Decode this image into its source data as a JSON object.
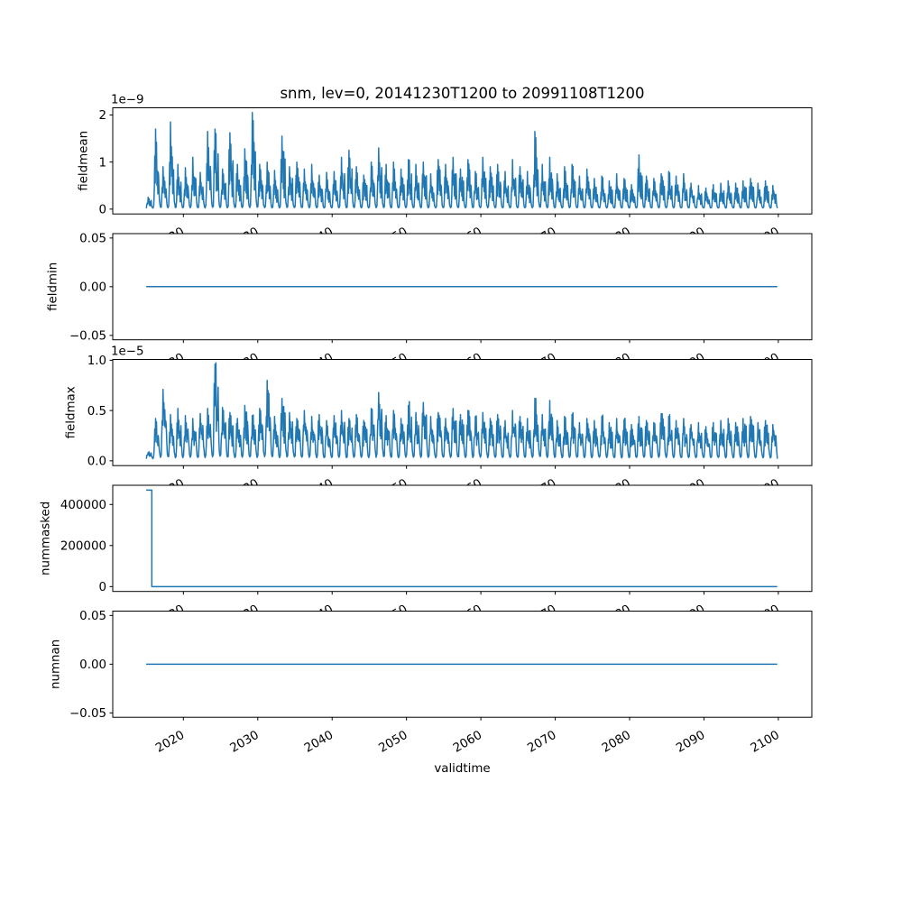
{
  "chart_data": {
    "type": "line",
    "title": "snm, lev=0, 20141230T1200 to 20991108T1200",
    "xlabel": "validtime",
    "grid": false,
    "legend": "none",
    "line_color": "#1f77b4",
    "axes_background": "#ffffff",
    "figure_background": "#ffffff",
    "xlim": [
      2010.5,
      2104.5
    ],
    "x_ticks": [
      2020,
      2030,
      2040,
      2050,
      2060,
      2070,
      2080,
      2090,
      2100
    ],
    "x_tick_labels": [
      "2020",
      "2030",
      "2040",
      "2050",
      "2060",
      "2070",
      "2080",
      "2090",
      "2100"
    ],
    "x_tick_rotation_deg": 30,
    "x_start": 2015.0,
    "x_end": 2099.85,
    "subplots": [
      {
        "name": "fieldmean",
        "ylabel": "fieldmean",
        "offset_text": "1e−9",
        "unit_scale": 1e-09,
        "y_ticks": [
          0,
          1,
          2
        ],
        "y_tick_labels": [
          "0",
          "1",
          "2"
        ],
        "ylim": [
          -0.1025,
          2.1525
        ],
        "series": {
          "kind": "seasonal-spiky",
          "profile": "sharp",
          "baseline": 0.02,
          "annual_peaks_start_year": 2015,
          "annual_peaks": [
            0.25,
            1.7,
            0.9,
            1.85,
            0.95,
            0.88,
            1.1,
            0.78,
            1.65,
            1.7,
            0.85,
            1.62,
            0.95,
            1.28,
            2.05,
            0.95,
            1.0,
            0.82,
            1.55,
            0.9,
            1.0,
            0.85,
            0.95,
            0.72,
            0.78,
            0.8,
            1.1,
            1.25,
            0.9,
            0.72,
            1.0,
            1.3,
            0.95,
            1.0,
            0.85,
            1.05,
            0.95,
            1.0,
            0.75,
            1.05,
            0.95,
            1.1,
            0.85,
            1.05,
            0.8,
            1.1,
            0.9,
            0.95,
            0.8,
            1.05,
            0.9,
            0.8,
            1.65,
            0.95,
            1.1,
            0.75,
            0.9,
            0.95,
            0.7,
            0.85,
            0.65,
            0.7,
            0.6,
            0.75,
            0.65,
            0.52,
            1.15,
            0.7,
            0.65,
            0.75,
            0.8,
            0.7,
            0.75,
            0.55,
            0.5,
            0.45,
            0.52,
            0.55,
            0.6,
            0.55,
            0.6,
            0.65,
            0.55,
            0.6,
            0.5
          ]
        }
      },
      {
        "name": "fieldmin",
        "ylabel": "fieldmin",
        "offset_text": "",
        "y_ticks": [
          -0.05,
          0.0,
          0.05
        ],
        "y_tick_labels": [
          "−0.05",
          "0.00",
          "0.05"
        ],
        "ylim": [
          -0.0545,
          0.0545
        ],
        "series": {
          "kind": "constant",
          "value": 0
        }
      },
      {
        "name": "fieldmax",
        "ylabel": "fieldmax",
        "offset_text": "1e−5",
        "unit_scale": 1e-05,
        "y_ticks": [
          0.0,
          0.5,
          1.0
        ],
        "y_tick_labels": [
          "0.0",
          "0.5",
          "1.0"
        ],
        "ylim": [
          -0.048,
          1.008
        ],
        "series": {
          "kind": "seasonal-spiky",
          "profile": "broad",
          "baseline": 0.02,
          "annual_peaks_start_year": 2015,
          "annual_peaks": [
            0.08,
            0.42,
            0.71,
            0.46,
            0.52,
            0.45,
            0.42,
            0.47,
            0.52,
            0.96,
            0.53,
            0.48,
            0.42,
            0.55,
            0.45,
            0.52,
            0.8,
            0.44,
            0.62,
            0.48,
            0.42,
            0.5,
            0.44,
            0.46,
            0.4,
            0.45,
            0.5,
            0.42,
            0.46,
            0.4,
            0.52,
            0.68,
            0.45,
            0.5,
            0.42,
            0.55,
            0.48,
            0.58,
            0.44,
            0.48,
            0.42,
            0.52,
            0.46,
            0.5,
            0.44,
            0.48,
            0.42,
            0.46,
            0.4,
            0.5,
            0.44,
            0.42,
            0.62,
            0.46,
            0.6,
            0.4,
            0.44,
            0.46,
            0.38,
            0.42,
            0.4,
            0.44,
            0.38,
            0.42,
            0.41,
            0.36,
            0.44,
            0.4,
            0.38,
            0.47,
            0.44,
            0.4,
            0.42,
            0.36,
            0.38,
            0.34,
            0.38,
            0.4,
            0.42,
            0.38,
            0.42,
            0.44,
            0.38,
            0.4,
            0.36
          ]
        }
      },
      {
        "name": "nummasked",
        "ylabel": "nummasked",
        "offset_text": "",
        "y_ticks": [
          0,
          200000,
          400000
        ],
        "y_tick_labels": [
          "0",
          "200000",
          "400000"
        ],
        "ylim": [
          -23500,
          493500
        ],
        "series": {
          "kind": "step-drop",
          "high": 470000,
          "low": 0,
          "drop_x": 2015.75
        }
      },
      {
        "name": "numnan",
        "ylabel": "numnan",
        "offset_text": "",
        "y_ticks": [
          -0.05,
          0.0,
          0.05
        ],
        "y_tick_labels": [
          "−0.05",
          "0.00",
          "0.05"
        ],
        "ylim": [
          -0.0545,
          0.0545
        ],
        "series": {
          "kind": "constant",
          "value": 0
        }
      }
    ]
  }
}
